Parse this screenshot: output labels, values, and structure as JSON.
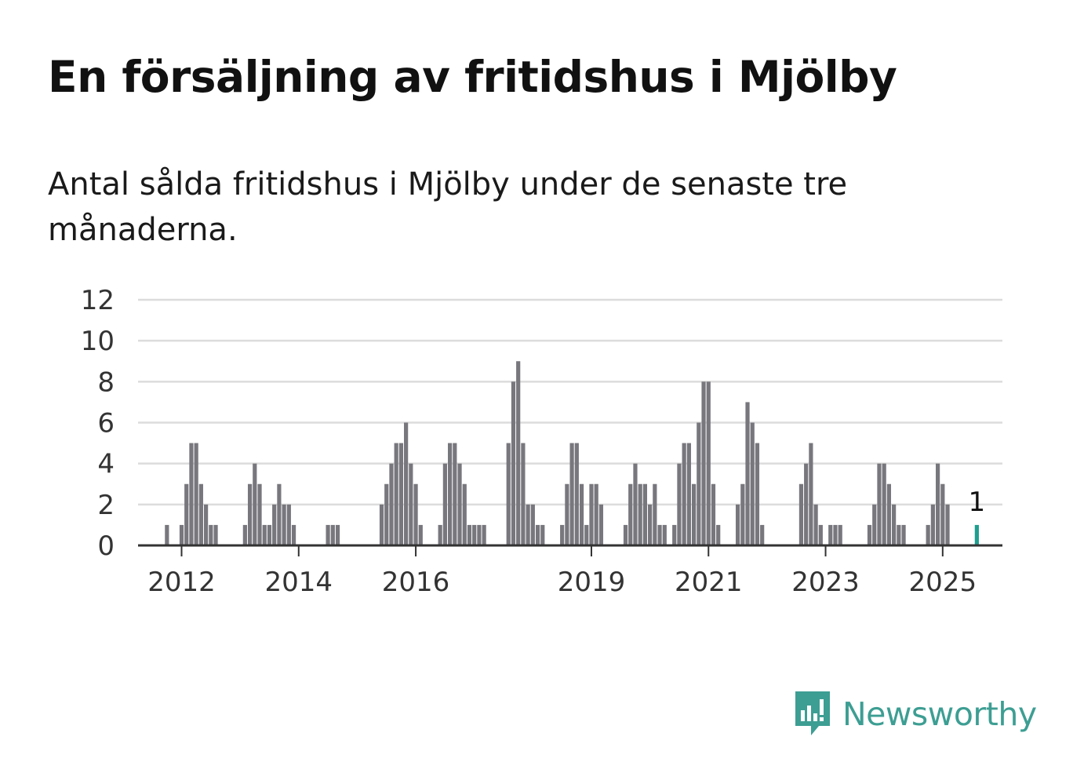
{
  "title": "En försäljning av fritidshus i Mjölby",
  "subtitle": "Antal sålda fritidshus i Mjölby under de senaste tre månaderna.",
  "brand": {
    "name": "Newsworthy",
    "icon": "newsworthy-logo-icon",
    "color": "#3d9e93"
  },
  "colors": {
    "bar": "#77777d",
    "highlight": "#1f9e8f",
    "grid": "#dcdcdc",
    "axis": "#333333"
  },
  "chart_data": {
    "type": "bar",
    "ylim": [
      0,
      12
    ],
    "yticks": [
      0,
      2,
      4,
      6,
      8,
      10,
      12
    ],
    "xticks": [
      {
        "label": "2012",
        "at": "2012-01"
      },
      {
        "label": "2014",
        "at": "2014-01"
      },
      {
        "label": "2016",
        "at": "2016-01"
      },
      {
        "label": "2019",
        "at": "2019-01"
      },
      {
        "label": "2021",
        "at": "2021-01"
      },
      {
        "label": "2023",
        "at": "2023-01"
      },
      {
        "label": "2025",
        "at": "2025-01"
      }
    ],
    "start": "2011-01",
    "values": [
      0,
      0,
      0,
      0,
      0,
      0,
      0,
      0,
      0,
      1,
      0,
      0,
      1,
      3,
      5,
      5,
      3,
      2,
      1,
      1,
      0,
      0,
      0,
      0,
      0,
      1,
      3,
      4,
      3,
      1,
      1,
      2,
      3,
      2,
      2,
      1,
      0,
      0,
      0,
      0,
      0,
      0,
      1,
      1,
      1,
      0,
      0,
      0,
      0,
      0,
      0,
      0,
      0,
      2,
      3,
      4,
      5,
      5,
      6,
      4,
      3,
      1,
      0,
      0,
      0,
      1,
      4,
      5,
      5,
      4,
      3,
      1,
      1,
      1,
      1,
      0,
      0,
      0,
      0,
      5,
      8,
      9,
      5,
      2,
      2,
      1,
      1,
      0,
      0,
      0,
      1,
      3,
      5,
      5,
      3,
      1,
      3,
      3,
      2,
      0,
      0,
      0,
      0,
      1,
      3,
      4,
      3,
      3,
      2,
      3,
      1,
      1,
      0,
      1,
      4,
      5,
      5,
      3,
      6,
      8,
      8,
      3,
      1,
      0,
      0,
      0,
      2,
      3,
      7,
      6,
      5,
      1,
      0,
      0,
      0,
      0,
      0,
      0,
      0,
      3,
      4,
      5,
      2,
      1,
      0,
      1,
      1,
      1,
      0,
      0,
      0,
      0,
      0,
      1,
      2,
      4,
      4,
      3,
      2,
      1,
      1,
      0,
      0,
      0,
      0,
      1,
      2,
      4,
      3,
      2,
      0,
      0,
      0,
      0,
      0,
      1
    ],
    "highlight_last": true,
    "highlight_label": "1"
  }
}
